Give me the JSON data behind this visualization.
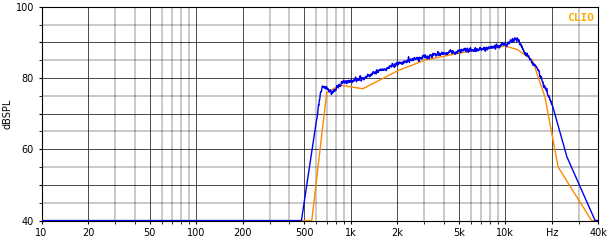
{
  "title": "CLIO",
  "ylabel": "dBSPL",
  "xmin": 10,
  "xmax": 40000,
  "ymin": 40,
  "ymax": 100,
  "yticks": [
    40,
    50,
    60,
    70,
    80,
    90,
    100
  ],
  "ytick_labels": [
    "40",
    "",
    "60",
    "",
    "80",
    "",
    "100"
  ],
  "xticks": [
    10,
    20,
    50,
    100,
    200,
    500,
    1000,
    2000,
    5000,
    10000,
    20000,
    40000
  ],
  "xticklabels": [
    "10",
    "20",
    "50",
    "100",
    "200",
    "500",
    "1k",
    "2k",
    "5k",
    "10k",
    "Hz",
    "40k"
  ],
  "bg_color": "#ffffff",
  "grid_color": "#000000",
  "line_blue": "#0000ee",
  "line_orange": "#ff8800",
  "clio_color": "#ffaa00"
}
